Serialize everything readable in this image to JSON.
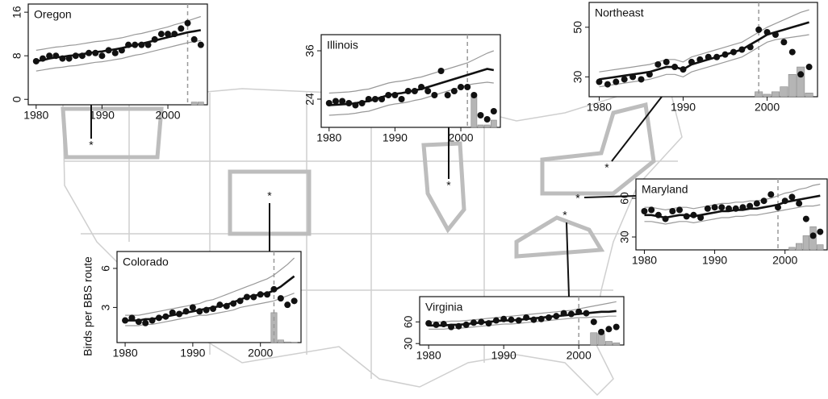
{
  "chart_data": [
    {
      "type": "line",
      "title": "Oregon",
      "marker": "*",
      "x": [
        1980,
        1981,
        1982,
        1983,
        1984,
        1985,
        1986,
        1987,
        1988,
        1989,
        1990,
        1991,
        1992,
        1993,
        1994,
        1995,
        1996,
        1997,
        1998,
        1999,
        2000,
        2001,
        2002,
        2003,
        2004,
        2005
      ],
      "observed": [
        7,
        7.5,
        8,
        8,
        7.5,
        7.5,
        8,
        8,
        8.5,
        8.5,
        8,
        9,
        8.5,
        9,
        10,
        10,
        10,
        10,
        11,
        12,
        12,
        12,
        13,
        14,
        11,
        10
      ],
      "fit": [
        7,
        7.2,
        7.5,
        7.7,
        7.8,
        8,
        8.1,
        8.3,
        8.5,
        8.7,
        8.8,
        9,
        9.2,
        9.4,
        9.7,
        10,
        10.2,
        10.5,
        10.8,
        11.1,
        11.4,
        11.7,
        12,
        12.3,
        12.5,
        12.7
      ],
      "upper": [
        9,
        9.2,
        9.4,
        9.6,
        9.7,
        9.9,
        10,
        10.2,
        10.4,
        10.6,
        10.7,
        10.9,
        11.1,
        11.3,
        11.6,
        11.9,
        12.1,
        12.4,
        12.7,
        13,
        13.3,
        13.7,
        14,
        14.4,
        14.8,
        15.2
      ],
      "lower": [
        5.2,
        5.4,
        5.6,
        5.8,
        5.9,
        6.1,
        6.2,
        6.4,
        6.6,
        6.8,
        6.9,
        7.1,
        7.3,
        7.5,
        7.8,
        8.1,
        8.3,
        8.6,
        8.9,
        9.2,
        9.5,
        9.8,
        10.1,
        10.4,
        10.6,
        10.8
      ],
      "vline": 2003,
      "hist_bins": [
        2003.5,
        2004.5,
        2005.5
      ],
      "hist_tops": [
        -0.5,
        -0.5
      ],
      "xlim": [
        1978.8,
        2006
      ],
      "xticks": [
        1980,
        1990,
        2000
      ],
      "ylim": [
        -1,
        17.5
      ],
      "yticks": [
        0,
        8,
        16
      ]
    },
    {
      "type": "line",
      "title": "Illinois",
      "marker": "*",
      "x": [
        1980,
        1981,
        1982,
        1983,
        1984,
        1985,
        1986,
        1987,
        1988,
        1989,
        1990,
        1991,
        1992,
        1993,
        1994,
        1995,
        1996,
        1997,
        1998,
        1999,
        2000,
        2001,
        2002,
        2003,
        2004,
        2005
      ],
      "observed": [
        23,
        23.5,
        23.5,
        23,
        22.5,
        23,
        24,
        24,
        24,
        25,
        25,
        24,
        26,
        26,
        27,
        26,
        25,
        31,
        25,
        26,
        27,
        27,
        25,
        20,
        19,
        21
      ],
      "fit": [
        22.5,
        22.6,
        22.7,
        22.8,
        23,
        23.3,
        23.5,
        24,
        24.5,
        25,
        25.3,
        25.5,
        25.8,
        26.2,
        26.5,
        27,
        27.5,
        28,
        28.5,
        29,
        29.5,
        30,
        30.5,
        31,
        31.5,
        31.2
      ],
      "upper": [
        25.5,
        25.6,
        25.7,
        25.8,
        26,
        26.3,
        26.5,
        27,
        27.5,
        28,
        28.3,
        28.5,
        28.8,
        29.2,
        29.5,
        30,
        30.5,
        31,
        31.5,
        32,
        32.5,
        33,
        33.8,
        34.6,
        35.4,
        36
      ],
      "lower": [
        20,
        20.1,
        20.2,
        20.3,
        20.5,
        20.8,
        21,
        21.5,
        22,
        22.5,
        22.8,
        23,
        23.3,
        23.7,
        24,
        24.5,
        25,
        25.5,
        26,
        26.5,
        27,
        27.5,
        27.8,
        28,
        28.2,
        28
      ],
      "vline": 2001,
      "hist_bins": [
        2001.5,
        2002.5,
        2003.5,
        2004.5,
        2005.5
      ],
      "hist_tops": [
        25,
        17.6,
        17.6,
        18.8
      ],
      "xlim": [
        1978.8,
        2006
      ],
      "xticks": [
        1980,
        1990,
        2000
      ],
      "ylim": [
        17,
        40
      ],
      "yticks": [
        24,
        36
      ]
    },
    {
      "type": "line",
      "title": "Northeast",
      "marker": "*",
      "x": [
        1980,
        1981,
        1982,
        1983,
        1984,
        1985,
        1986,
        1987,
        1988,
        1989,
        1990,
        1991,
        1992,
        1993,
        1994,
        1995,
        1996,
        1997,
        1998,
        1999,
        2000,
        2001,
        2002,
        2003,
        2004,
        2005
      ],
      "observed": [
        28,
        27,
        28,
        29,
        30,
        29,
        31,
        35,
        36,
        34,
        33,
        36,
        37,
        38,
        38,
        39,
        40,
        41,
        42,
        49,
        48,
        47,
        44,
        40,
        31,
        34
      ],
      "fit": [
        29,
        29.5,
        30,
        30.5,
        31,
        31.5,
        32,
        33,
        34,
        34,
        33,
        35,
        36,
        37,
        38,
        39,
        40,
        41,
        43,
        45,
        47,
        48,
        49,
        50,
        51,
        52
      ],
      "upper": [
        32,
        32.5,
        33,
        33.5,
        34,
        34.5,
        35,
        36,
        37,
        37,
        36,
        38,
        39,
        40,
        41,
        42,
        43,
        44,
        46,
        48,
        50,
        51.5,
        53,
        54.5,
        56,
        57
      ],
      "lower": [
        26,
        26.5,
        27,
        27.5,
        28,
        28.5,
        29,
        30,
        31,
        31,
        30,
        32,
        33,
        34,
        35,
        36,
        37,
        38,
        40,
        42,
        44,
        45,
        45.5,
        46,
        46.5,
        47
      ],
      "vline": 1999,
      "hist_bins": [
        1998.5,
        1999.5,
        2000.5,
        2001.5,
        2002.5,
        2003.5,
        2004.5,
        2005.5
      ],
      "hist_tops": [
        24,
        23,
        24,
        26,
        31,
        34,
        23.5
      ],
      "xlim": [
        1978.8,
        2006
      ],
      "xticks": [
        1980,
        1990,
        2000
      ],
      "ylim": [
        22,
        60
      ],
      "yticks": [
        30,
        50
      ]
    },
    {
      "type": "line",
      "title": "Maryland",
      "marker": "*",
      "x": [
        1980,
        1981,
        1982,
        1983,
        1984,
        1985,
        1986,
        1987,
        1988,
        1989,
        1990,
        1991,
        1992,
        1993,
        1994,
        1995,
        1996,
        1997,
        1998,
        1999,
        2000,
        2001,
        2002,
        2003,
        2004,
        2005
      ],
      "observed": [
        50,
        51,
        47,
        44,
        50,
        51,
        46,
        47,
        45,
        52,
        53,
        53,
        52,
        52,
        53,
        54,
        56,
        58,
        63,
        53,
        58,
        61,
        56,
        44,
        31,
        34
      ],
      "fit": [
        47,
        47,
        46,
        45,
        46,
        47,
        47,
        46,
        47,
        48,
        49,
        50,
        50,
        51,
        51,
        52,
        52,
        53,
        54,
        55,
        57,
        58,
        59,
        60,
        61,
        62
      ],
      "upper": [
        53,
        53,
        52,
        51,
        52,
        53,
        53,
        52,
        53,
        54,
        55,
        56,
        56,
        57,
        57,
        58,
        58,
        59,
        60,
        62,
        64,
        65,
        67,
        68,
        70,
        71
      ],
      "lower": [
        42,
        42,
        41,
        40,
        41,
        42,
        42,
        41,
        42,
        43,
        44,
        45,
        45,
        46,
        46,
        47,
        47,
        48,
        49,
        50,
        51,
        52,
        53,
        54,
        54,
        55
      ],
      "vline": 1999,
      "hist_bins": [
        2000.5,
        2001.5,
        2002.5,
        2003.5,
        2004.5,
        2005.5
      ],
      "hist_tops": [
        22,
        25,
        31,
        38,
        24
      ],
      "xlim": [
        1978.8,
        2006
      ],
      "xticks": [
        1980,
        1990,
        2000
      ],
      "ylim": [
        20,
        75
      ],
      "yticks": [
        30,
        60
      ]
    },
    {
      "type": "line",
      "title": "Colorado",
      "marker": "*",
      "ylabel": "Birds per BBS route",
      "x": [
        1980,
        1981,
        1982,
        1983,
        1984,
        1985,
        1986,
        1987,
        1988,
        1989,
        1990,
        1991,
        1992,
        1993,
        1994,
        1995,
        1996,
        1997,
        1998,
        1999,
        2000,
        2001,
        2002,
        2003,
        2004,
        2005
      ],
      "observed": [
        2,
        2.2,
        1.9,
        1.8,
        2,
        2.2,
        2.3,
        2.6,
        2.5,
        2.7,
        3,
        2.7,
        2.8,
        2.9,
        3.2,
        3.1,
        3.3,
        3.5,
        3.8,
        3.8,
        4,
        4,
        4.4,
        3.7,
        3.2,
        3.5
      ],
      "fit": [
        2,
        2,
        2,
        2.1,
        2.1,
        2.2,
        2.3,
        2.4,
        2.5,
        2.6,
        2.7,
        2.8,
        2.9,
        3,
        3.1,
        3.2,
        3.4,
        3.6,
        3.8,
        3.9,
        4,
        4.1,
        4.3,
        4.6,
        5,
        5.4
      ],
      "upper": [
        2.4,
        2.4,
        2.4,
        2.5,
        2.6,
        2.7,
        2.8,
        2.9,
        3,
        3.1,
        3.2,
        3.3,
        3.5,
        3.6,
        3.8,
        4,
        4.2,
        4.4,
        4.6,
        4.8,
        5,
        5.2,
        5.5,
        5.9,
        6.3,
        6.8
      ],
      "lower": [
        1.6,
        1.6,
        1.6,
        1.7,
        1.7,
        1.8,
        1.9,
        2,
        2.1,
        2.2,
        2.3,
        2.4,
        2.4,
        2.5,
        2.6,
        2.7,
        2.8,
        3,
        3.1,
        3.2,
        3.3,
        3.4,
        3.5,
        3.7,
        3.9,
        4.1
      ],
      "vline": 2002,
      "hist_bins": [
        2001.5,
        2002.5,
        2003.5,
        2004.5,
        2005.5
      ],
      "hist_tops": [
        2.6,
        0.5,
        0.35,
        0.32
      ],
      "xlim": [
        1978.8,
        2006
      ],
      "xticks": [
        1980,
        1990,
        2000
      ],
      "ylim": [
        0.3,
        7.3
      ],
      "yticks": [
        3,
        6
      ]
    },
    {
      "type": "line",
      "title": "Virginia",
      "marker": "*",
      "x": [
        1980,
        1981,
        1982,
        1983,
        1984,
        1985,
        1986,
        1987,
        1988,
        1989,
        1990,
        1991,
        1992,
        1993,
        1994,
        1995,
        1996,
        1997,
        1998,
        1999,
        2000,
        2001,
        2002,
        2003,
        2004,
        2005
      ],
      "observed": [
        58,
        56,
        57,
        53,
        54,
        56,
        59,
        60,
        58,
        62,
        64,
        63,
        62,
        66,
        63,
        64,
        66,
        68,
        72,
        71,
        74,
        72,
        60,
        46,
        50,
        53
      ],
      "fit": [
        55,
        55,
        55,
        56,
        56,
        57,
        58,
        59,
        60,
        61,
        62,
        62,
        63,
        64,
        65,
        66,
        67,
        68,
        69,
        70,
        71,
        72,
        73,
        74,
        74,
        75
      ],
      "upper": [
        60,
        60,
        60,
        61,
        61,
        62,
        63,
        64,
        65,
        66,
        67,
        68,
        69,
        70,
        71,
        72,
        73,
        74,
        75,
        76,
        78,
        80,
        82,
        84,
        86,
        88
      ],
      "lower": [
        50,
        50,
        50,
        51,
        51,
        52,
        53,
        54,
        55,
        56,
        57,
        57,
        58,
        59,
        60,
        61,
        62,
        63,
        64,
        65,
        66,
        66,
        67,
        67,
        68,
        68
      ],
      "vline": 2000,
      "hist_bins": [
        2001.5,
        2002.5,
        2003.5,
        2004.5,
        2005.5
      ],
      "hist_tops": [
        45,
        44,
        33,
        31
      ],
      "xlim": [
        1978.8,
        2006
      ],
      "xticks": [
        1980,
        1990,
        2000
      ],
      "ylim": [
        28,
        95
      ],
      "yticks": [
        30,
        60
      ]
    }
  ]
}
